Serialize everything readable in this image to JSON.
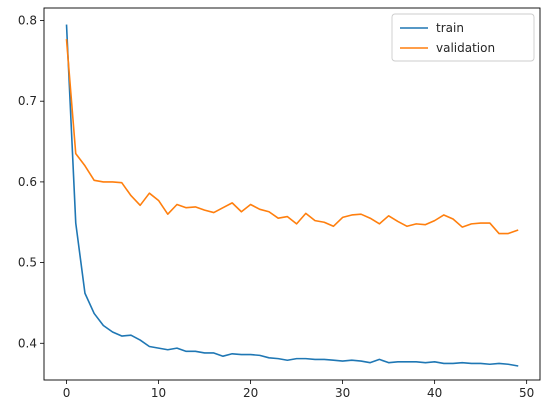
{
  "chart_data": {
    "type": "line",
    "title": "",
    "xlabel": "",
    "ylabel": "",
    "xlim": [
      -2.45,
      51.45
    ],
    "ylim": [
      0.3545,
      0.8155
    ],
    "xticks": [
      0,
      10,
      20,
      30,
      40,
      50
    ],
    "yticks": [
      0.4,
      0.5,
      0.6,
      0.7,
      0.8
    ],
    "xtick_labels": [
      "0",
      "10",
      "20",
      "30",
      "40",
      "50"
    ],
    "ytick_labels": [
      "0.4",
      "0.5",
      "0.6",
      "0.7",
      "0.8"
    ],
    "grid": false,
    "legend_position": "top-right",
    "x": [
      0,
      1,
      2,
      3,
      4,
      5,
      6,
      7,
      8,
      9,
      10,
      11,
      12,
      13,
      14,
      15,
      16,
      17,
      18,
      19,
      20,
      21,
      22,
      23,
      24,
      25,
      26,
      27,
      28,
      29,
      30,
      31,
      32,
      33,
      34,
      35,
      36,
      37,
      38,
      39,
      40,
      41,
      42,
      43,
      44,
      45,
      46,
      47,
      48,
      49
    ],
    "series": [
      {
        "name": "train",
        "color": "#1f77b4",
        "values": [
          0.794,
          0.549,
          0.462,
          0.437,
          0.422,
          0.414,
          0.409,
          0.41,
          0.404,
          0.396,
          0.394,
          0.392,
          0.394,
          0.39,
          0.39,
          0.388,
          0.388,
          0.384,
          0.387,
          0.386,
          0.386,
          0.385,
          0.382,
          0.381,
          0.379,
          0.381,
          0.381,
          0.38,
          0.38,
          0.379,
          0.378,
          0.379,
          0.378,
          0.376,
          0.38,
          0.376,
          0.377,
          0.377,
          0.377,
          0.376,
          0.377,
          0.375,
          0.375,
          0.376,
          0.375,
          0.375,
          0.374,
          0.375,
          0.374,
          0.372
        ]
      },
      {
        "name": "validation",
        "color": "#ff7f0e",
        "values": [
          0.776,
          0.635,
          0.62,
          0.602,
          0.6,
          0.6,
          0.599,
          0.583,
          0.571,
          0.586,
          0.577,
          0.56,
          0.572,
          0.568,
          0.569,
          0.565,
          0.562,
          0.568,
          0.574,
          0.563,
          0.572,
          0.566,
          0.563,
          0.555,
          0.557,
          0.548,
          0.561,
          0.552,
          0.55,
          0.545,
          0.556,
          0.559,
          0.56,
          0.555,
          0.548,
          0.558,
          0.551,
          0.545,
          0.548,
          0.547,
          0.552,
          0.559,
          0.554,
          0.544,
          0.548,
          0.549,
          0.549,
          0.536,
          0.536,
          0.54
        ]
      }
    ]
  }
}
